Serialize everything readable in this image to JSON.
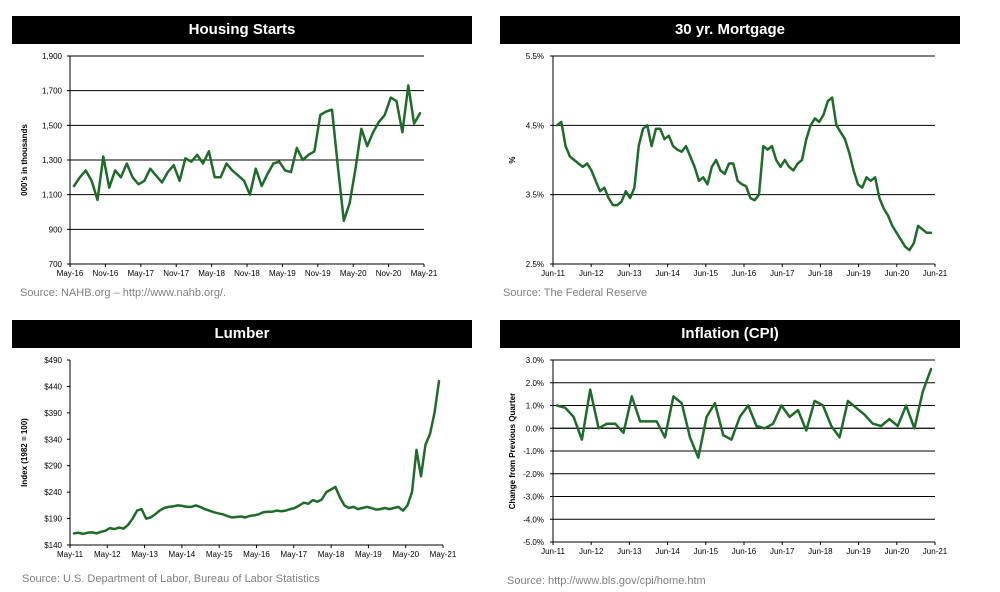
{
  "chart_data": [
    {
      "type": "line",
      "title": "Housing Starts",
      "ylabel": "000's in thousands",
      "xlabel": "",
      "ylim": [
        700,
        1900
      ],
      "yticks": [
        700,
        900,
        1100,
        1300,
        1500,
        1700,
        1900
      ],
      "ytick_labels": [
        "700",
        "900",
        "1,100",
        "1,300",
        "1,500",
        "1,700",
        "1,900"
      ],
      "x_ticks": [
        "May-16",
        "Nov-16",
        "May-17",
        "Nov-17",
        "May-18",
        "Nov-18",
        "May-19",
        "Nov-19",
        "May-20",
        "Nov-20",
        "May-21"
      ],
      "grid": true,
      "color": "#1e6b2a",
      "source": "Source:  NAHB.org – http://www.nahb.org/.",
      "series": [
        {
          "values": [
            1150,
            1200,
            1240,
            1180,
            1070,
            1320,
            1140,
            1240,
            1200,
            1280,
            1200,
            1160,
            1180,
            1250,
            1210,
            1170,
            1230,
            1270,
            1180,
            1310,
            1290,
            1330,
            1280,
            1350,
            1200,
            1200,
            1280,
            1240,
            1210,
            1180,
            1100,
            1250,
            1150,
            1220,
            1280,
            1290,
            1240,
            1230,
            1370,
            1300,
            1330,
            1350,
            1560,
            1580,
            1590,
            1260,
            950,
            1050,
            1250,
            1480,
            1380,
            1460,
            1520,
            1560,
            1660,
            1640,
            1460,
            1730,
            1510,
            1570
          ]
        }
      ]
    },
    {
      "type": "line",
      "title": "30 yr. Mortgage",
      "ylabel": "%",
      "xlabel": "",
      "ylim": [
        2.5,
        5.5
      ],
      "yticks": [
        2.5,
        3.5,
        4.5,
        5.5
      ],
      "ytick_labels": [
        "2.5%",
        "3.5%",
        "4.5%",
        "5.5%"
      ],
      "x_ticks": [
        "Jun-11",
        "Jun-12",
        "Jun-13",
        "Jun-14",
        "Jun-15",
        "Jun-16",
        "Jun-17",
        "Jun-18",
        "Jun-19",
        "Jun-20",
        "Jun-21"
      ],
      "grid": true,
      "color": "#1e6b2a",
      "source": "Source:  The Federal Reserve",
      "series": [
        {
          "values": [
            4.5,
            4.55,
            4.2,
            4.05,
            4.0,
            3.95,
            3.9,
            3.95,
            3.85,
            3.7,
            3.55,
            3.6,
            3.45,
            3.35,
            3.35,
            3.4,
            3.55,
            3.45,
            3.6,
            4.2,
            4.45,
            4.5,
            4.2,
            4.45,
            4.45,
            4.3,
            4.35,
            4.2,
            4.15,
            4.12,
            4.2,
            4.05,
            3.9,
            3.7,
            3.75,
            3.65,
            3.9,
            4.0,
            3.85,
            3.8,
            3.95,
            3.95,
            3.7,
            3.65,
            3.62,
            3.45,
            3.42,
            3.5,
            4.2,
            4.15,
            4.2,
            4.0,
            3.9,
            4.0,
            3.9,
            3.85,
            3.95,
            4.0,
            4.3,
            4.5,
            4.6,
            4.55,
            4.65,
            4.85,
            4.9,
            4.5,
            4.4,
            4.3,
            4.1,
            3.85,
            3.65,
            3.6,
            3.75,
            3.7,
            3.75,
            3.45,
            3.3,
            3.2,
            3.05,
            2.95,
            2.85,
            2.75,
            2.7,
            2.8,
            3.05,
            3.0,
            2.95,
            2.95
          ]
        }
      ]
    },
    {
      "type": "line",
      "title": "Lumber",
      "ylabel": "Index (1982 = 100)",
      "xlabel": "",
      "ylim": [
        140,
        490
      ],
      "yticks": [
        140,
        190,
        240,
        290,
        340,
        390,
        440,
        490
      ],
      "ytick_labels": [
        "$140",
        "$190",
        "$240",
        "$290",
        "$340",
        "$390",
        "$440",
        "$490"
      ],
      "x_ticks": [
        "May-11",
        "May-12",
        "May-13",
        "May-14",
        "May-15",
        "May-16",
        "May-17",
        "May-18",
        "May-19",
        "May-20",
        "May-21"
      ],
      "grid": false,
      "color": "#1e6b2a",
      "source": "Source:  U.S. Department of Labor, Bureau of Labor Statistics",
      "series": [
        {
          "values": [
            162,
            163,
            161,
            163,
            164,
            162,
            165,
            167,
            172,
            170,
            173,
            171,
            178,
            190,
            205,
            208,
            190,
            192,
            198,
            205,
            210,
            212,
            213,
            215,
            214,
            212,
            212,
            215,
            212,
            208,
            205,
            202,
            200,
            198,
            195,
            192,
            193,
            194,
            192,
            195,
            196,
            198,
            202,
            203,
            203,
            205,
            204,
            205,
            208,
            210,
            215,
            220,
            218,
            225,
            222,
            226,
            240,
            245,
            250,
            230,
            215,
            210,
            212,
            208,
            210,
            212,
            210,
            207,
            208,
            210,
            208,
            210,
            212,
            205,
            215,
            240,
            320,
            270,
            330,
            350,
            390,
            450
          ]
        }
      ]
    },
    {
      "type": "line",
      "title": "Inflation (CPI)",
      "ylabel": "Change from Previous Quarter",
      "xlabel": "",
      "ylim": [
        -5.0,
        3.0
      ],
      "yticks": [
        -5.0,
        -4.0,
        -3.0,
        -2.0,
        -1.0,
        0.0,
        1.0,
        2.0,
        3.0
      ],
      "ytick_labels": [
        "-5.0%",
        "-4.0%",
        "-3.0%",
        "-2.0%",
        "-1.0%",
        "0.0%",
        "1.0%",
        "2.0%",
        "3.0%"
      ],
      "x_ticks": [
        "Jun-11",
        "Jun-12",
        "Jun-13",
        "Jun-14",
        "Jun-15",
        "Jun-16",
        "Jun-17",
        "Jun-18",
        "Jun-19",
        "Jun-20",
        "Jun-21"
      ],
      "grid": true,
      "color": "#1e6b2a",
      "source": "Source:  http://www.bls.gov/cpi/home.htm",
      "series": [
        {
          "values": [
            1.0,
            0.9,
            0.5,
            -0.5,
            1.7,
            0.0,
            0.2,
            0.2,
            -0.2,
            1.4,
            0.3,
            0.3,
            0.3,
            -0.4,
            1.4,
            1.1,
            -0.4,
            -1.3,
            0.5,
            1.1,
            -0.3,
            -0.5,
            0.5,
            1.0,
            0.1,
            0.0,
            0.2,
            1.0,
            0.5,
            0.8,
            -0.1,
            1.2,
            1.0,
            0.1,
            -0.4,
            1.2,
            0.9,
            0.6,
            0.2,
            0.1,
            0.4,
            0.1,
            1.0,
            0.0,
            1.6,
            2.6
          ]
        }
      ]
    }
  ]
}
